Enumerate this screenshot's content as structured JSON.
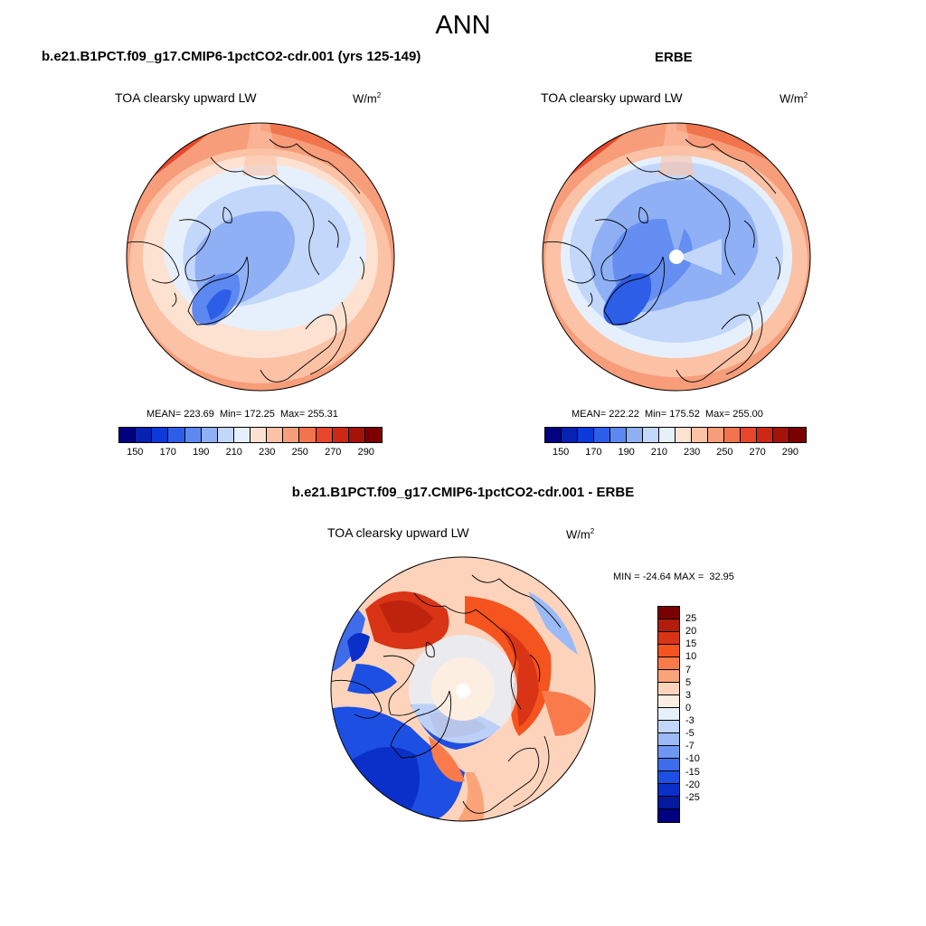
{
  "figure": {
    "title": "ANN",
    "units_base": "W/m",
    "units_exp": "2"
  },
  "panels": [
    {
      "title": "b.e21.B1PCT.f09_g17.CMIP6-1pctCO2-cdr.001 (yrs 125-149)",
      "variable": "TOA clearsky upward LW",
      "stats": "MEAN= 223.69  Min= 172.25  Max= 255.31",
      "mean": 223.69,
      "min": 172.25,
      "max": 255.31,
      "pole_hole": false
    },
    {
      "title": "ERBE",
      "variable": "TOA clearsky upward LW",
      "stats": "MEAN= 222.22  Min= 175.52  Max= 255.00",
      "mean": 222.22,
      "min": 175.52,
      "max": 255.0,
      "pole_hole": true
    }
  ],
  "colorbar": {
    "colors": [
      "#000080",
      "#0522b0",
      "#0b3ad8",
      "#2d5ee8",
      "#5d88f0",
      "#8fb0f5",
      "#c3d7fa",
      "#e6f0fd",
      "#fde2d2",
      "#fbc2a6",
      "#f79d7a",
      "#f2744d",
      "#e8462a",
      "#cc2814",
      "#a51207",
      "#7a0000"
    ],
    "tick_labels": [
      "150",
      "170",
      "190",
      "210",
      "230",
      "250",
      "270",
      "290"
    ]
  },
  "diff_panel": {
    "title": "b.e21.B1PCT.f09_g17.CMIP6-1pctCO2-cdr.001 - ERBE",
    "variable": "TOA clearsky upward LW",
    "minmax": "MIN = -24.64 MAX =  32.95",
    "min": -24.64,
    "max": 32.95
  },
  "diff_colorbar": {
    "colors": [
      "#7a0000",
      "#b21c0c",
      "#d93415",
      "#f5541e",
      "#f97b4c",
      "#fba47a",
      "#fdd4bb",
      "#fdeee2",
      "#e6f0fd",
      "#c3d7fa",
      "#9bbaf7",
      "#6e97f2",
      "#3f6cea",
      "#1d4fe3",
      "#0a30c9",
      "#04199e",
      "#000080"
    ],
    "tick_labels": [
      "25",
      "20",
      "15",
      "10",
      "7",
      "5",
      "3",
      "0",
      "-3",
      "-5",
      "-7",
      "-10",
      "-15",
      "-20",
      "-25"
    ]
  }
}
